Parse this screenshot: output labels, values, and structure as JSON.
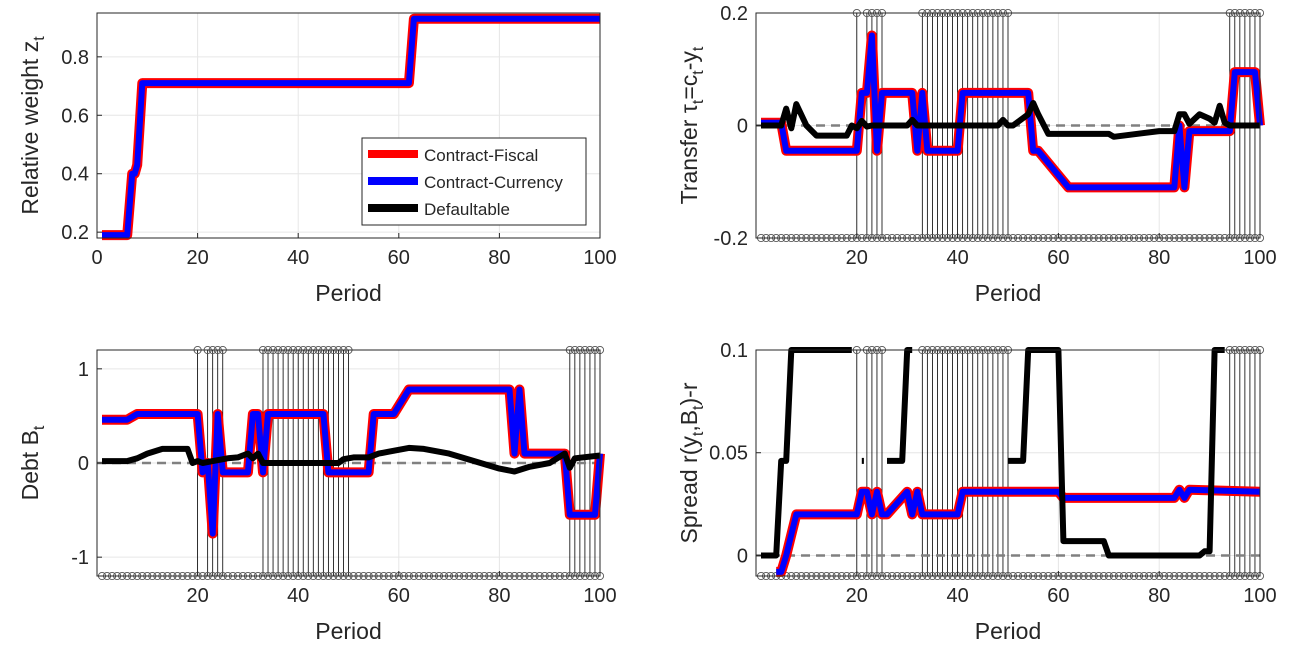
{
  "legend": {
    "placement": "lower-right of top-left panel",
    "entries": [
      {
        "name": "Contract-Fiscal",
        "color": "#ff0000"
      },
      {
        "name": "Contract-Currency",
        "color": "#0000ff"
      },
      {
        "name": "Defaultable",
        "color": "#000000"
      }
    ]
  },
  "colors": {
    "fiscal": "#ff0000",
    "currency": "#0000ff",
    "defaultable": "#000000",
    "zero_line": "#808080",
    "grid": "#e6e6e6",
    "stems": "#000000"
  },
  "default_markers": [
    20,
    22,
    23,
    24,
    25,
    33,
    34,
    35,
    36,
    37,
    38,
    39,
    40,
    41,
    42,
    43,
    44,
    45,
    46,
    47,
    48,
    49,
    50,
    94,
    95,
    96,
    97,
    98,
    99,
    100
  ],
  "chart_data": [
    {
      "type": "line",
      "id": "weight",
      "title": "",
      "xlabel": "Period",
      "ylabel": "Relative weight z",
      "ylabel_sub": "t",
      "xlim": [
        0,
        100
      ],
      "ylim": [
        0.18,
        0.95
      ],
      "xticks": [
        0,
        20,
        40,
        60,
        80,
        100
      ],
      "yticks": [
        0.2,
        0.4,
        0.6,
        0.8
      ],
      "ytick_labels": [
        "0.2",
        "0.4",
        "0.6",
        "0.8"
      ],
      "grid": true,
      "zero_line": false,
      "stems": false,
      "series": [
        {
          "name": "Contract-Fiscal",
          "color": "#ff0000",
          "width": 10,
          "x": [
            1,
            6,
            7,
            7.5,
            8,
            9,
            62,
            63,
            100
          ],
          "y": [
            0.19,
            0.19,
            0.4,
            0.4,
            0.43,
            0.71,
            0.71,
            0.93,
            0.93
          ]
        },
        {
          "name": "Contract-Currency",
          "color": "#0000ff",
          "width": 6,
          "x": [
            1,
            6,
            7,
            7.5,
            8,
            9,
            62,
            63,
            100
          ],
          "y": [
            0.19,
            0.19,
            0.4,
            0.4,
            0.43,
            0.71,
            0.71,
            0.93,
            0.93
          ]
        }
      ]
    },
    {
      "type": "line",
      "id": "transfer",
      "title": "",
      "xlabel": "Period",
      "ylabel": "Transfer τ",
      "ylabel_sub": "t",
      "ylabel_rest": "=c",
      "ylabel_sub2": "t",
      "ylabel_rest2": "-y",
      "ylabel_sub3": "t",
      "xlim": [
        0,
        100
      ],
      "ylim": [
        -0.2,
        0.2
      ],
      "xticks": [
        20,
        40,
        60,
        80,
        100
      ],
      "yticks": [
        -0.2,
        0,
        0.2
      ],
      "ytick_labels": [
        "-0.2",
        "0",
        "0.2"
      ],
      "grid": true,
      "zero_line": true,
      "stems": true,
      "series": [
        {
          "name": "Contract-Fiscal",
          "color": "#ff0000",
          "width": 10,
          "x": [
            1,
            5,
            6,
            20,
            21,
            22,
            23,
            24,
            25,
            26,
            27,
            31,
            32,
            33,
            34,
            40,
            41,
            48,
            49,
            54,
            55,
            56,
            62,
            63,
            83,
            84,
            85,
            86,
            94,
            95,
            99,
            100
          ],
          "y": [
            0.005,
            0.005,
            -0.045,
            -0.045,
            0.058,
            0.058,
            0.16,
            -0.045,
            0.058,
            0.058,
            0.058,
            0.058,
            -0.045,
            0.058,
            -0.045,
            -0.045,
            0.058,
            0.058,
            0.058,
            0.058,
            -0.045,
            -0.045,
            -0.11,
            -0.11,
            -0.11,
            0.0,
            -0.11,
            -0.01,
            -0.01,
            0.095,
            0.095,
            0.0
          ]
        },
        {
          "name": "Contract-Currency",
          "color": "#0000ff",
          "width": 6,
          "x": [
            1,
            5,
            6,
            20,
            21,
            22,
            23,
            24,
            25,
            26,
            27,
            31,
            32,
            33,
            34,
            40,
            41,
            48,
            49,
            54,
            55,
            56,
            62,
            63,
            83,
            84,
            85,
            86,
            94,
            95,
            99,
            100
          ],
          "y": [
            0.005,
            0.005,
            -0.045,
            -0.045,
            0.058,
            0.058,
            0.16,
            -0.045,
            0.058,
            0.058,
            0.058,
            0.058,
            -0.045,
            0.058,
            -0.045,
            -0.045,
            0.058,
            0.058,
            0.058,
            0.058,
            -0.045,
            -0.045,
            -0.11,
            -0.11,
            -0.11,
            0.0,
            -0.11,
            -0.01,
            -0.01,
            0.095,
            0.095,
            0.0
          ]
        },
        {
          "name": "Defaultable",
          "color": "#000000",
          "width": 6,
          "x": [
            1,
            5,
            6,
            7,
            8,
            10,
            12,
            18,
            19,
            20,
            21,
            22,
            23,
            30,
            31,
            32,
            33,
            48,
            49,
            50,
            51,
            54,
            55,
            56,
            58,
            62,
            70,
            71,
            80,
            83,
            84,
            85,
            86,
            88,
            90,
            91,
            92,
            93,
            94,
            100
          ],
          "y": [
            0.0,
            0.0,
            0.03,
            -0.005,
            0.038,
            0.0,
            -0.018,
            -0.018,
            0.0,
            -0.005,
            0.008,
            -0.002,
            0.0,
            0.0,
            0.01,
            0.0,
            0.0,
            0.0,
            0.01,
            0.0,
            0.0,
            0.02,
            0.04,
            0.02,
            -0.015,
            -0.015,
            -0.015,
            -0.02,
            -0.01,
            -0.01,
            0.02,
            0.02,
            0.003,
            0.02,
            0.012,
            0.005,
            0.035,
            0.005,
            0.0,
            0.0
          ]
        }
      ]
    },
    {
      "type": "line",
      "id": "debt",
      "title": "",
      "xlabel": "Period",
      "ylabel": "Debt B",
      "ylabel_sub": "t",
      "xlim": [
        0,
        100
      ],
      "ylim": [
        -1.2,
        1.2
      ],
      "xticks": [
        20,
        40,
        60,
        80,
        100
      ],
      "yticks": [
        -1,
        0,
        1
      ],
      "ytick_labels": [
        "-1",
        "0",
        "1"
      ],
      "grid": true,
      "zero_line": true,
      "stems": true,
      "series": [
        {
          "name": "Contract-Fiscal",
          "color": "#ff0000",
          "width": 10,
          "x": [
            1,
            6,
            8,
            20,
            21,
            22,
            23,
            24,
            25,
            26,
            30,
            31,
            32,
            33,
            34,
            35,
            36,
            45,
            46,
            54,
            55,
            58,
            59,
            62,
            63,
            82,
            83,
            84,
            85,
            86,
            93,
            94,
            95,
            99,
            100
          ],
          "y": [
            0.46,
            0.46,
            0.52,
            0.52,
            -0.1,
            0.0,
            -0.75,
            0.52,
            -0.1,
            -0.1,
            -0.1,
            0.52,
            0.52,
            -0.1,
            0.52,
            0.52,
            0.52,
            0.52,
            -0.1,
            -0.1,
            0.52,
            0.52,
            0.52,
            0.78,
            0.78,
            0.78,
            0.1,
            0.78,
            0.1,
            0.1,
            0.1,
            -0.55,
            -0.55,
            -0.55,
            0.1
          ]
        },
        {
          "name": "Contract-Currency",
          "color": "#0000ff",
          "width": 6,
          "x": [
            1,
            6,
            8,
            20,
            21,
            22,
            23,
            24,
            25,
            26,
            30,
            31,
            32,
            33,
            34,
            35,
            36,
            45,
            46,
            54,
            55,
            58,
            59,
            62,
            63,
            82,
            83,
            84,
            85,
            86,
            93,
            94,
            95,
            99,
            100
          ],
          "y": [
            0.46,
            0.46,
            0.52,
            0.52,
            -0.1,
            0.0,
            -0.75,
            0.52,
            -0.1,
            -0.1,
            -0.1,
            0.52,
            0.52,
            -0.1,
            0.52,
            0.52,
            0.52,
            0.52,
            -0.1,
            -0.1,
            0.52,
            0.52,
            0.52,
            0.78,
            0.78,
            0.78,
            0.1,
            0.78,
            0.1,
            0.1,
            0.1,
            -0.55,
            -0.55,
            -0.55,
            0.1
          ]
        },
        {
          "name": "Defaultable",
          "color": "#000000",
          "width": 6,
          "x": [
            1,
            6,
            8,
            10,
            13,
            18,
            19,
            20,
            21,
            23,
            26,
            28,
            30,
            31,
            32,
            33,
            48,
            49,
            51,
            54,
            56,
            58,
            60,
            62,
            65,
            70,
            75,
            80,
            83,
            86,
            90,
            93,
            94,
            95,
            100
          ],
          "y": [
            0.02,
            0.02,
            0.05,
            0.1,
            0.15,
            0.15,
            0.0,
            0.02,
            0.0,
            0.02,
            0.05,
            0.06,
            0.1,
            0.05,
            0.1,
            0.0,
            0.0,
            0.04,
            0.06,
            0.06,
            0.1,
            0.12,
            0.14,
            0.16,
            0.15,
            0.1,
            0.02,
            -0.06,
            -0.09,
            -0.04,
            0.0,
            0.1,
            -0.05,
            0.05,
            0.08
          ]
        }
      ]
    },
    {
      "type": "line",
      "id": "spread",
      "title": "",
      "xlabel": "Period",
      "ylabel": "Spread r(y",
      "ylabel_sub": "t",
      "ylabel_rest": ",B",
      "ylabel_sub2": "t",
      "ylabel_rest2": ")-r",
      "xlim": [
        0,
        100
      ],
      "ylim": [
        -0.01,
        0.1
      ],
      "xticks": [
        20,
        40,
        60,
        80,
        100
      ],
      "yticks": [
        0,
        0.05,
        0.1
      ],
      "ytick_labels": [
        "0",
        "0.05",
        "0.1"
      ],
      "grid": true,
      "zero_line": true,
      "stems": true,
      "series": [
        {
          "name": "Contract-Fiscal",
          "color": "#ff0000",
          "width": 10,
          "x": [
            4,
            5,
            6,
            8,
            20,
            21,
            22,
            23,
            24,
            25,
            26,
            30,
            31,
            32,
            33,
            34,
            40,
            41,
            54,
            55,
            60,
            61,
            83,
            84,
            85,
            86,
            100
          ],
          "y": [
            -0.008,
            -0.008,
            0.0,
            0.02,
            0.02,
            0.031,
            0.031,
            0.02,
            0.031,
            0.02,
            0.02,
            0.031,
            0.02,
            0.031,
            0.02,
            0.02,
            0.02,
            0.031,
            0.031,
            0.031,
            0.031,
            0.028,
            0.028,
            0.032,
            0.028,
            0.032,
            0.031
          ]
        },
        {
          "name": "Contract-Currency",
          "color": "#0000ff",
          "width": 6,
          "x": [
            4,
            5,
            6,
            8,
            20,
            21,
            22,
            23,
            24,
            25,
            26,
            30,
            31,
            32,
            33,
            34,
            40,
            41,
            54,
            55,
            60,
            61,
            83,
            84,
            85,
            86,
            100
          ],
          "y": [
            -0.008,
            -0.008,
            0.0,
            0.02,
            0.02,
            0.031,
            0.031,
            0.02,
            0.031,
            0.02,
            0.02,
            0.031,
            0.02,
            0.031,
            0.02,
            0.02,
            0.02,
            0.031,
            0.031,
            0.031,
            0.031,
            0.028,
            0.028,
            0.032,
            0.028,
            0.032,
            0.031
          ]
        },
        {
          "name": "Defaultable",
          "color": "#000000",
          "width": 6,
          "x": [
            1,
            4,
            5,
            6,
            7,
            8,
            19
          ],
          "y": [
            0.0,
            0.0,
            0.046,
            0.046,
            0.1,
            0.1,
            0.1
          ]
        },
        {
          "name": "Defaultable",
          "color": "#000000",
          "width": 6,
          "x": [
            21,
            21.4
          ],
          "y": [
            0.046,
            0.046
          ]
        },
        {
          "name": "Defaultable",
          "color": "#000000",
          "width": 6,
          "x": [
            26,
            29,
            30,
            31
          ],
          "y": [
            0.046,
            0.046,
            0.1,
            0.1
          ]
        },
        {
          "name": "Defaultable",
          "color": "#000000",
          "width": 6,
          "x": [
            50,
            53,
            54,
            55,
            59,
            60,
            61,
            68,
            69,
            70,
            71,
            88,
            89,
            90,
            91,
            92,
            93
          ],
          "y": [
            0.046,
            0.046,
            0.1,
            0.1,
            0.1,
            0.1,
            0.007,
            0.007,
            0.007,
            0.0,
            0.0,
            0.0,
            0.002,
            0.002,
            0.1,
            0.1,
            0.1
          ]
        }
      ]
    }
  ]
}
